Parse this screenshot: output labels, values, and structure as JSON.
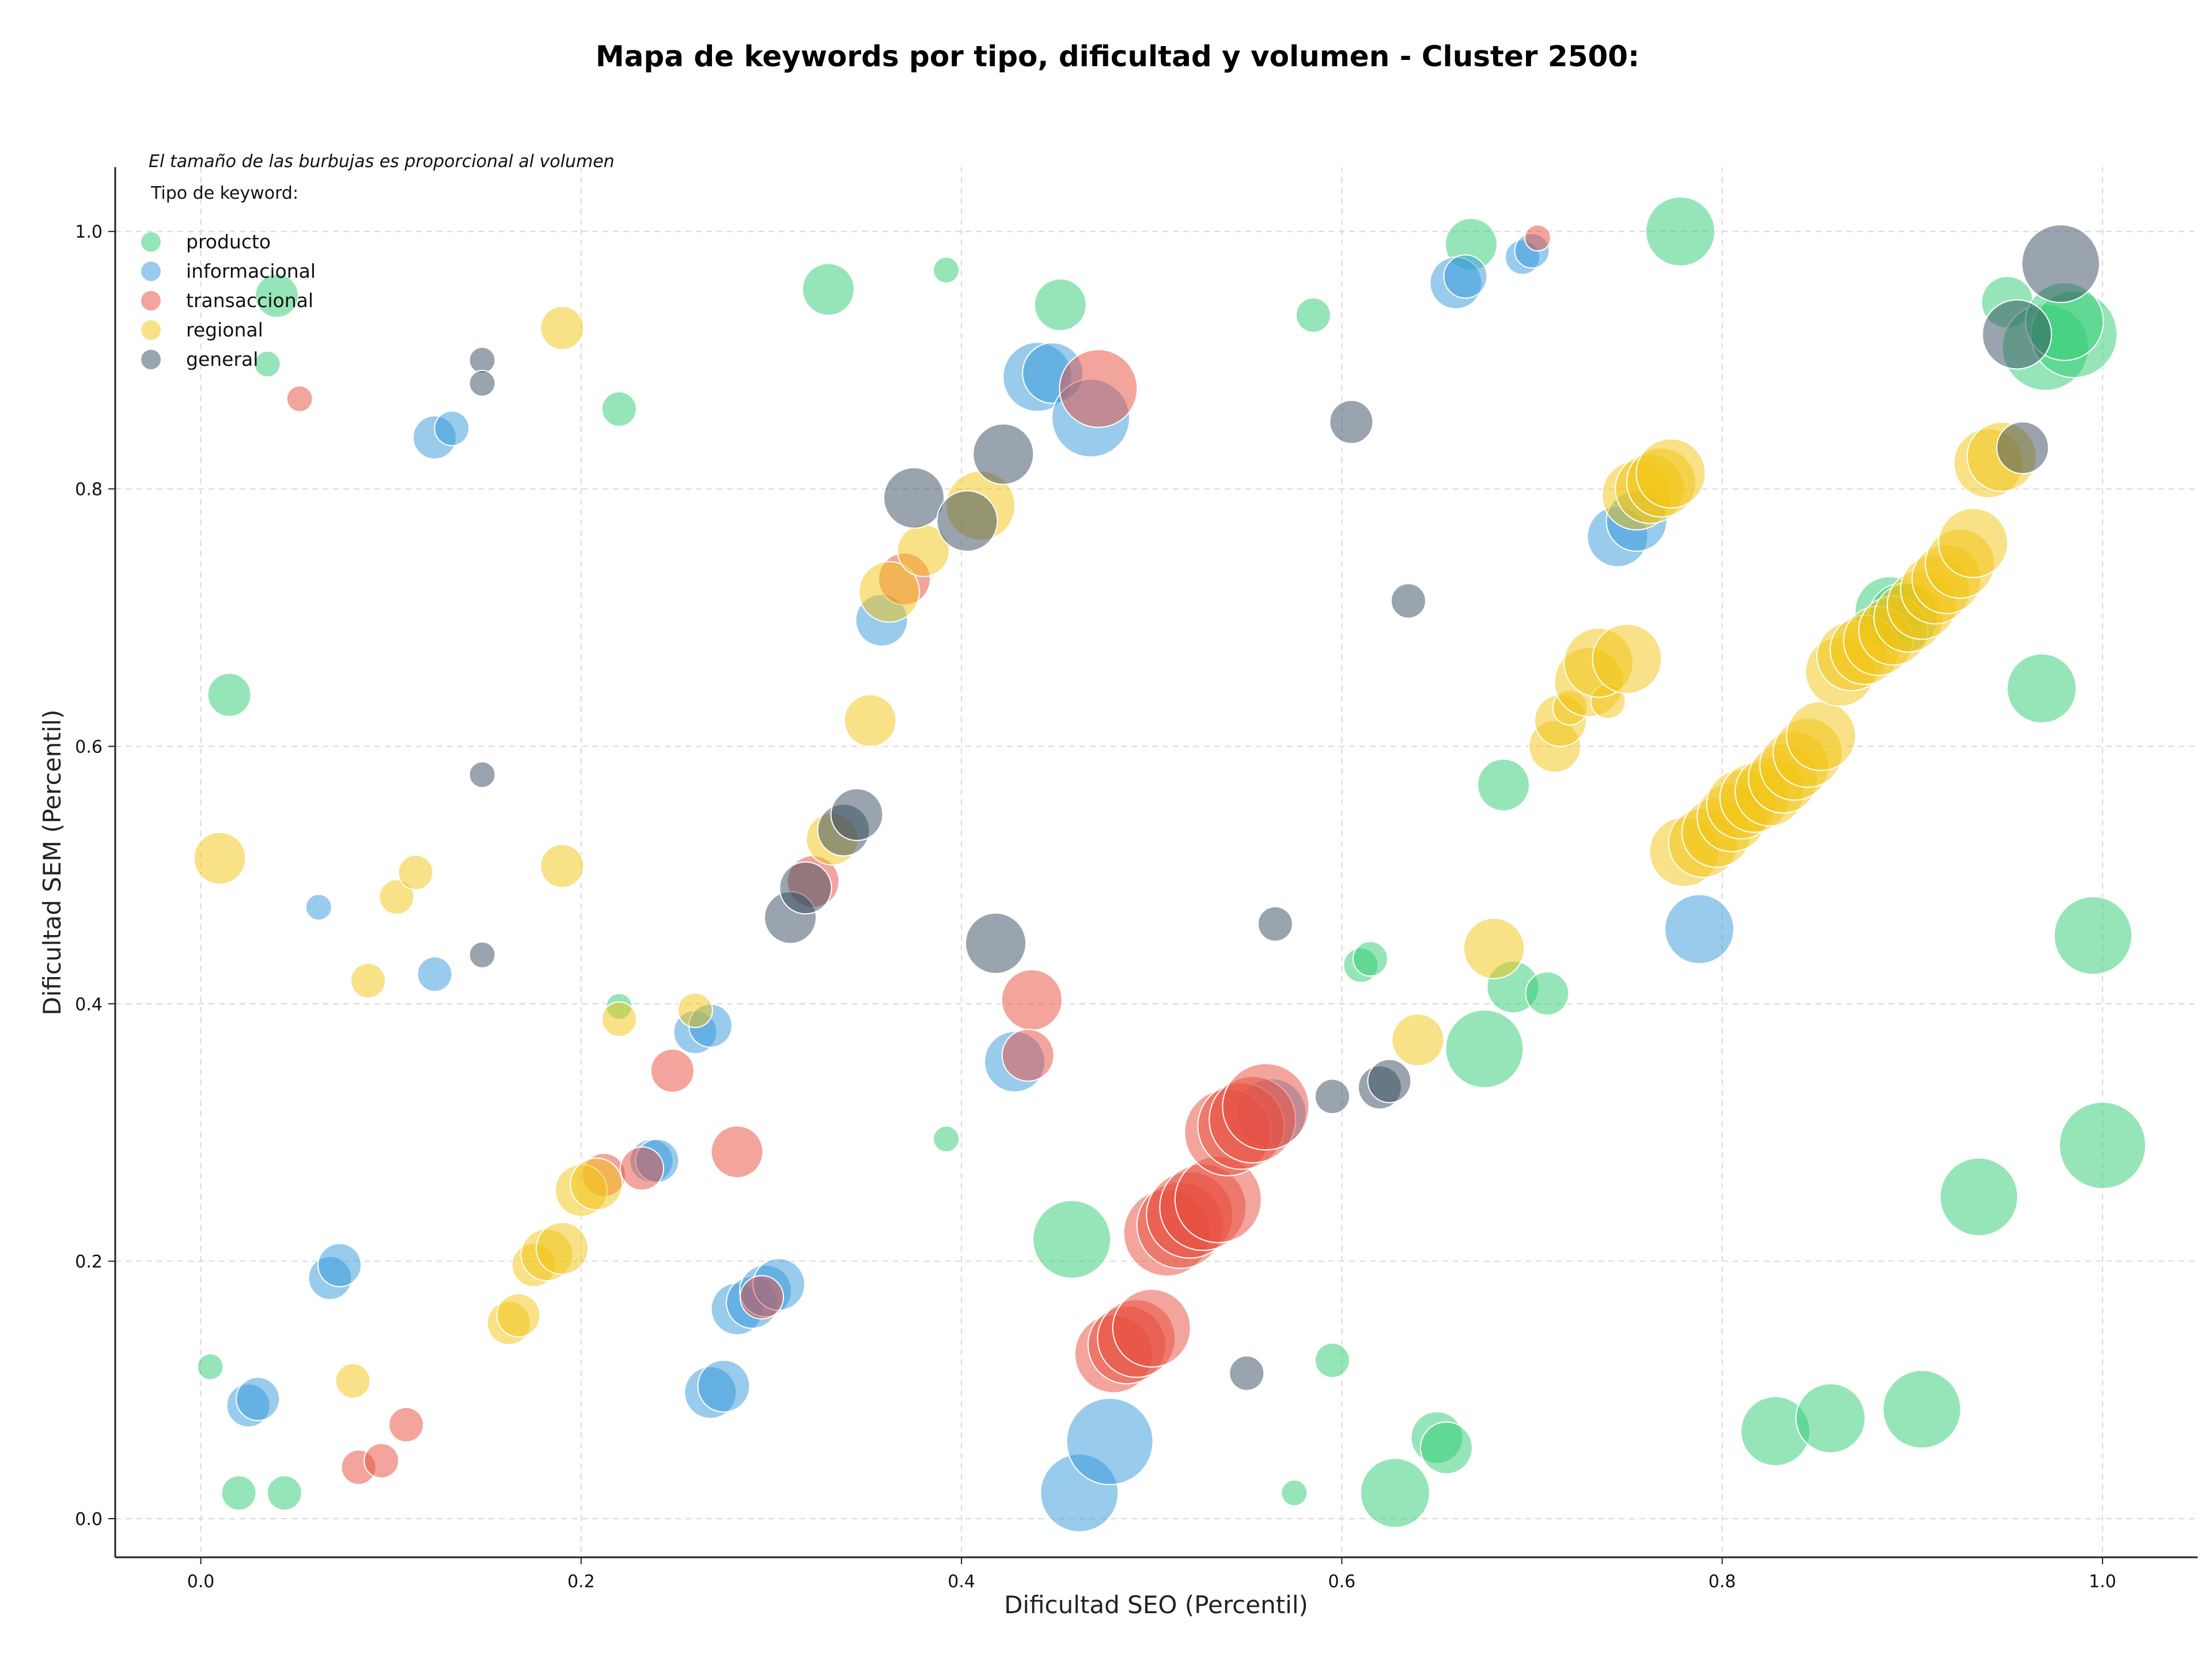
{
  "chart_data": {
    "type": "scatter",
    "title": "Mapa de keywords por tipo, dificultad y volumen - Cluster 2500:",
    "xlabel": "Dificultad SEO (Percentil)",
    "ylabel": "Dificultad SEM (Percentil)",
    "xlim": [
      -0.045,
      1.05
    ],
    "ylim": [
      -0.03,
      1.05
    ],
    "xticks": [
      0.0,
      0.2,
      0.4,
      0.6,
      0.8,
      1.0
    ],
    "yticks": [
      0.0,
      0.2,
      0.4,
      0.6,
      0.8,
      1.0
    ],
    "xtick_labels": [
      "0.0",
      "0.2",
      "0.4",
      "0.6",
      "0.8",
      "1.0"
    ],
    "ytick_labels": [
      "0.0",
      "0.2",
      "0.4",
      "0.6",
      "0.8",
      "1.0"
    ],
    "grid": true,
    "legend_placement": "top-left",
    "legend_note": "El tamaño de las burbujas es proporcional al volumen",
    "legend_title": "Tipo de keyword:",
    "size_encoding": "volume",
    "series": [
      {
        "name": "producto",
        "color": "#2ecc71",
        "points": [
          [
            0.04,
            0.95,
            3
          ],
          [
            0.035,
            0.897,
            1
          ],
          [
            0.015,
            0.64,
            3
          ],
          [
            0.005,
            0.118,
            1
          ],
          [
            0.02,
            0.02,
            2
          ],
          [
            0.044,
            0.02,
            2
          ],
          [
            0.22,
            0.862,
            2
          ],
          [
            0.22,
            0.398,
            1
          ],
          [
            0.33,
            0.955,
            4
          ],
          [
            0.392,
            0.97,
            1
          ],
          [
            0.392,
            0.295,
            1
          ],
          [
            0.452,
            0.943,
            4
          ],
          [
            0.458,
            0.217,
            7
          ],
          [
            0.585,
            0.935,
            2
          ],
          [
            0.595,
            0.123,
            2
          ],
          [
            0.575,
            0.02,
            1
          ],
          [
            0.61,
            0.43,
            2
          ],
          [
            0.615,
            0.435,
            2
          ],
          [
            0.628,
            0.02,
            6
          ],
          [
            0.65,
            0.063,
            4
          ],
          [
            0.655,
            0.055,
            4
          ],
          [
            0.668,
            0.99,
            4
          ],
          [
            0.675,
            0.365,
            7
          ],
          [
            0.685,
            0.57,
            4
          ],
          [
            0.69,
            0.413,
            4
          ],
          [
            0.708,
            0.408,
            3
          ],
          [
            0.778,
            1.0,
            6
          ],
          [
            0.828,
            0.068,
            6
          ],
          [
            0.857,
            0.078,
            6
          ],
          [
            0.905,
            0.085,
            7
          ],
          [
            0.935,
            0.25,
            7
          ],
          [
            0.95,
            0.945,
            4
          ],
          [
            0.968,
            0.645,
            6
          ],
          [
            0.995,
            0.453,
            7
          ],
          [
            1.0,
            0.29,
            8
          ],
          [
            0.97,
            0.91,
            8
          ],
          [
            0.985,
            0.92,
            8
          ],
          [
            0.98,
            0.93,
            7
          ],
          [
            0.888,
            0.705,
            6
          ],
          [
            0.895,
            0.7,
            6
          ]
        ]
      },
      {
        "name": "informacional",
        "color": "#3498db",
        "points": [
          [
            0.025,
            0.088,
            3
          ],
          [
            0.03,
            0.093,
            3
          ],
          [
            0.062,
            0.475,
            1
          ],
          [
            0.068,
            0.187,
            3
          ],
          [
            0.073,
            0.197,
            3
          ],
          [
            0.123,
            0.84,
            3
          ],
          [
            0.132,
            0.847,
            2
          ],
          [
            0.123,
            0.423,
            2
          ],
          [
            0.237,
            0.278,
            3
          ],
          [
            0.24,
            0.278,
            3
          ],
          [
            0.26,
            0.378,
            3
          ],
          [
            0.268,
            0.383,
            3
          ],
          [
            0.268,
            0.098,
            4
          ],
          [
            0.275,
            0.103,
            4
          ],
          [
            0.282,
            0.163,
            4
          ],
          [
            0.29,
            0.168,
            4
          ],
          [
            0.297,
            0.177,
            4
          ],
          [
            0.304,
            0.182,
            4
          ],
          [
            0.358,
            0.698,
            4
          ],
          [
            0.428,
            0.355,
            5
          ],
          [
            0.44,
            0.887,
            6
          ],
          [
            0.448,
            0.89,
            5
          ],
          [
            0.462,
            0.02,
            7
          ],
          [
            0.468,
            0.855,
            7
          ],
          [
            0.478,
            0.06,
            8
          ],
          [
            0.563,
            0.315,
            6
          ],
          [
            0.66,
            0.96,
            4
          ],
          [
            0.665,
            0.965,
            3
          ],
          [
            0.695,
            0.98,
            2
          ],
          [
            0.7,
            0.985,
            2
          ],
          [
            0.745,
            0.763,
            5
          ],
          [
            0.755,
            0.775,
            5
          ],
          [
            0.788,
            0.458,
            6
          ]
        ]
      },
      {
        "name": "transaccional",
        "color": "#e74c3c",
        "points": [
          [
            0.052,
            0.87,
            1
          ],
          [
            0.083,
            0.04,
            2
          ],
          [
            0.095,
            0.045,
            2
          ],
          [
            0.108,
            0.073,
            2
          ],
          [
            0.212,
            0.267,
            3
          ],
          [
            0.232,
            0.272,
            3
          ],
          [
            0.248,
            0.348,
            3
          ],
          [
            0.282,
            0.285,
            4
          ],
          [
            0.295,
            0.172,
            3
          ],
          [
            0.322,
            0.495,
            4
          ],
          [
            0.37,
            0.73,
            4
          ],
          [
            0.437,
            0.403,
            5
          ],
          [
            0.435,
            0.36,
            4
          ],
          [
            0.472,
            0.878,
            7
          ],
          [
            0.48,
            0.128,
            7
          ],
          [
            0.487,
            0.135,
            7
          ],
          [
            0.492,
            0.14,
            7
          ],
          [
            0.5,
            0.148,
            7
          ],
          [
            0.508,
            0.222,
            8
          ],
          [
            0.515,
            0.228,
            8
          ],
          [
            0.52,
            0.236,
            8
          ],
          [
            0.527,
            0.242,
            8
          ],
          [
            0.535,
            0.248,
            8
          ],
          [
            0.54,
            0.3,
            8
          ],
          [
            0.547,
            0.305,
            8
          ],
          [
            0.553,
            0.31,
            8
          ],
          [
            0.56,
            0.32,
            8
          ],
          [
            0.703,
            0.995,
            1
          ]
        ]
      },
      {
        "name": "regional",
        "color": "#f1c40f",
        "points": [
          [
            0.01,
            0.513,
            4
          ],
          [
            0.08,
            0.107,
            2
          ],
          [
            0.088,
            0.418,
            2
          ],
          [
            0.103,
            0.483,
            2
          ],
          [
            0.113,
            0.502,
            2
          ],
          [
            0.162,
            0.152,
            3
          ],
          [
            0.167,
            0.158,
            3
          ],
          [
            0.175,
            0.197,
            3
          ],
          [
            0.182,
            0.205,
            4
          ],
          [
            0.19,
            0.21,
            4
          ],
          [
            0.19,
            0.925,
            3
          ],
          [
            0.19,
            0.507,
            3
          ],
          [
            0.2,
            0.255,
            4
          ],
          [
            0.208,
            0.26,
            4
          ],
          [
            0.22,
            0.388,
            2
          ],
          [
            0.26,
            0.395,
            2
          ],
          [
            0.332,
            0.528,
            4
          ],
          [
            0.352,
            0.62,
            4
          ],
          [
            0.362,
            0.72,
            5
          ],
          [
            0.38,
            0.752,
            4
          ],
          [
            0.41,
            0.787,
            6
          ],
          [
            0.64,
            0.372,
            4
          ],
          [
            0.68,
            0.443,
            5
          ],
          [
            0.712,
            0.6,
            4
          ],
          [
            0.715,
            0.62,
            4
          ],
          [
            0.72,
            0.63,
            2
          ],
          [
            0.73,
            0.65,
            6
          ],
          [
            0.74,
            0.635,
            2
          ],
          [
            0.735,
            0.665,
            6
          ],
          [
            0.75,
            0.668,
            6
          ],
          [
            0.755,
            0.795,
            6
          ],
          [
            0.762,
            0.8,
            6
          ],
          [
            0.768,
            0.805,
            6
          ],
          [
            0.773,
            0.812,
            6
          ],
          [
            0.78,
            0.518,
            6
          ],
          [
            0.79,
            0.525,
            6
          ],
          [
            0.797,
            0.533,
            6
          ],
          [
            0.805,
            0.545,
            6
          ],
          [
            0.81,
            0.555,
            6
          ],
          [
            0.817,
            0.56,
            6
          ],
          [
            0.825,
            0.565,
            6
          ],
          [
            0.832,
            0.575,
            6
          ],
          [
            0.838,
            0.585,
            6
          ],
          [
            0.845,
            0.595,
            6
          ],
          [
            0.852,
            0.608,
            6
          ],
          [
            0.862,
            0.658,
            6
          ],
          [
            0.868,
            0.67,
            6
          ],
          [
            0.875,
            0.675,
            6
          ],
          [
            0.882,
            0.682,
            6
          ],
          [
            0.89,
            0.69,
            6
          ],
          [
            0.898,
            0.7,
            6
          ],
          [
            0.905,
            0.71,
            6
          ],
          [
            0.912,
            0.722,
            6
          ],
          [
            0.918,
            0.73,
            6
          ],
          [
            0.925,
            0.742,
            6
          ],
          [
            0.932,
            0.758,
            6
          ],
          [
            0.94,
            0.82,
            6
          ],
          [
            0.947,
            0.825,
            6
          ]
        ]
      },
      {
        "name": "general",
        "color": "#34495e",
        "points": [
          [
            0.148,
            0.9,
            1
          ],
          [
            0.148,
            0.882,
            1
          ],
          [
            0.148,
            0.578,
            1
          ],
          [
            0.148,
            0.438,
            1
          ],
          [
            0.31,
            0.467,
            4
          ],
          [
            0.318,
            0.49,
            4
          ],
          [
            0.338,
            0.535,
            4
          ],
          [
            0.345,
            0.547,
            4
          ],
          [
            0.375,
            0.793,
            5
          ],
          [
            0.403,
            0.775,
            5
          ],
          [
            0.418,
            0.447,
            5
          ],
          [
            0.422,
            0.827,
            5
          ],
          [
            0.55,
            0.113,
            2
          ],
          [
            0.565,
            0.462,
            2
          ],
          [
            0.595,
            0.328,
            2
          ],
          [
            0.605,
            0.852,
            3
          ],
          [
            0.62,
            0.335,
            3
          ],
          [
            0.625,
            0.34,
            3
          ],
          [
            0.635,
            0.713,
            2
          ],
          [
            0.955,
            0.92,
            6
          ],
          [
            0.958,
            0.832,
            4
          ],
          [
            0.978,
            0.975,
            7
          ]
        ]
      }
    ]
  }
}
